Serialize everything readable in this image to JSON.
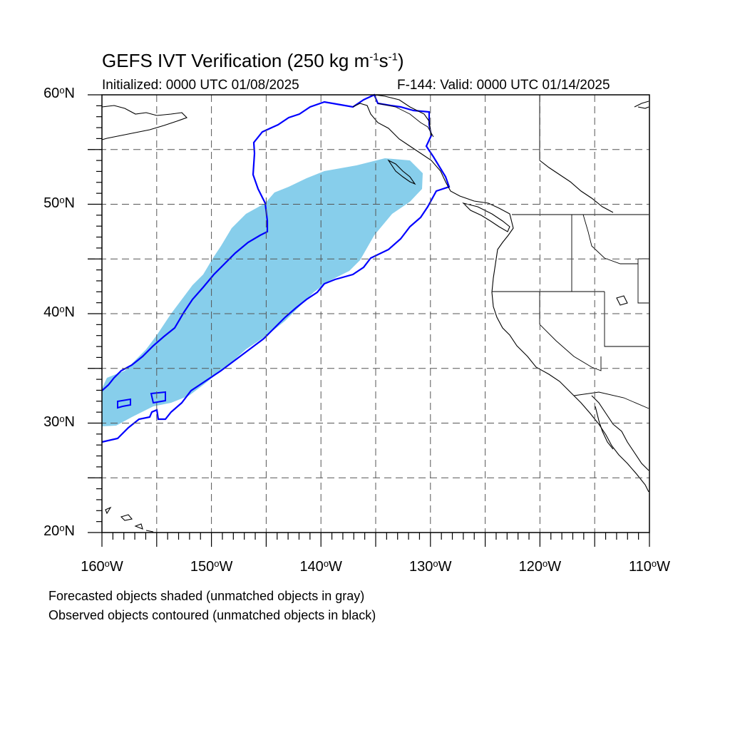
{
  "title_main": "GEFS IVT Verification (250 kg m",
  "title_exp1": "-1",
  "title_mid": "s",
  "title_exp2": "-1",
  "title_end": ")",
  "initialized": "Initialized: 0000 UTC 01/08/2025",
  "valid": "F-144: Valid: 0000 UTC 01/14/2025",
  "lat_labels": [
    {
      "num": "60",
      "hem": "N"
    },
    {
      "num": "50",
      "hem": "N"
    },
    {
      "num": "40",
      "hem": "N"
    },
    {
      "num": "30",
      "hem": "N"
    },
    {
      "num": "20",
      "hem": "N"
    }
  ],
  "lon_labels": [
    {
      "num": "160",
      "hem": "W"
    },
    {
      "num": "150",
      "hem": "W"
    },
    {
      "num": "140",
      "hem": "W"
    },
    {
      "num": "130",
      "hem": "W"
    },
    {
      "num": "120",
      "hem": "W"
    },
    {
      "num": "110",
      "hem": "W"
    }
  ],
  "degree_symbol": "o",
  "notes": {
    "forecast": "Forecasted objects shaded (unmatched objects in gray)",
    "observed": "Observed objects contoured (unmatched objects in black)"
  },
  "map": {
    "lon_range": [
      -160,
      -110
    ],
    "lat_range": [
      20,
      60
    ],
    "grid_step_deg": 5,
    "grid": "dashed"
  },
  "colors": {
    "forecast_fill": "#87ceeb",
    "observed_contour": "#0000ff",
    "coastline": "#000000"
  }
}
